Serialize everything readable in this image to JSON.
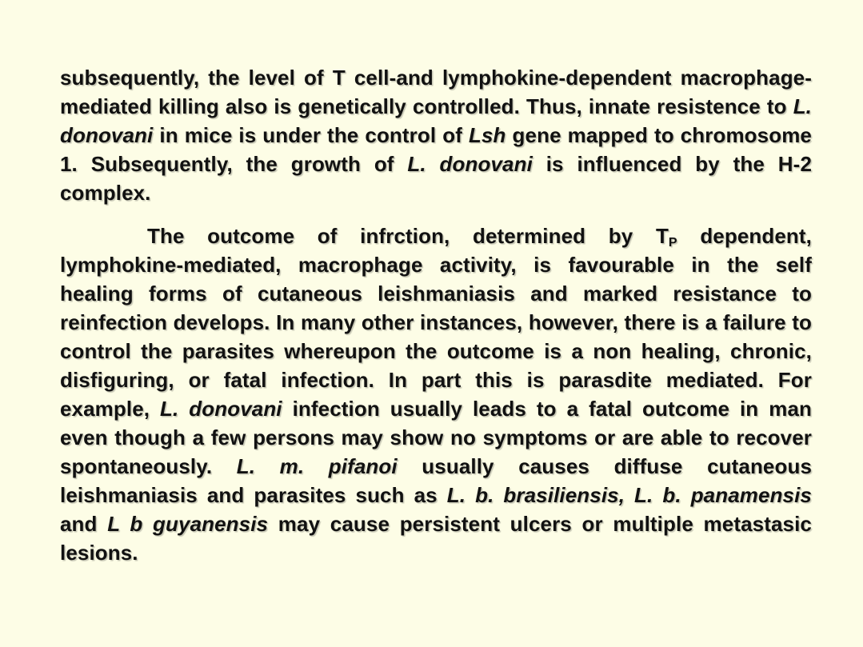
{
  "page": {
    "background_color": "#fdfde6",
    "text_color": "#111111"
  },
  "paragraphs": [
    {
      "segments": [
        {
          "text": "subsequently, the level of T cell-and lymphokine-dependent macrophage-mediated killing also is genetically controlled. Thus, innate resistence to ",
          "style": "normal"
        },
        {
          "text": "L. donovani",
          "style": "italic"
        },
        {
          "text": "  in mice is under the control of ",
          "style": "normal"
        },
        {
          "text": "Lsh",
          "style": "italic"
        },
        {
          "text": " gene mapped to chromosome 1. Subsequently, the growth of ",
          "style": "normal"
        },
        {
          "text": "L. donovani",
          "style": "italic"
        },
        {
          "text": " is influenced by the H-2 complex.",
          "style": "normal"
        }
      ]
    },
    {
      "segments": [
        {
          "text": "The outcome of infrction, determined by T",
          "style": "normal"
        },
        {
          "text": "P",
          "style": "sub"
        },
        {
          "text": " dependent, lymphokine-mediated, macrophage activity, is favourable in the self healing forms of cutaneous leishmaniasis and marked resistance to reinfection develops. In many other instances, however, there is a failure to control the parasites whereupon the outcome is a non healing, chronic, disfiguring, or fatal infection. In part this is parasdite mediated. For example, ",
          "style": "normal"
        },
        {
          "text": "L. donovani",
          "style": "italic"
        },
        {
          "text": " infection usually leads to a fatal outcome in man even though a few persons may show no symptoms or are able to recover spontaneously. ",
          "style": "normal"
        },
        {
          "text": "L. m. pifanoi",
          "style": "italic"
        },
        {
          "text": " usually causes diffuse cutaneous leishmaniasis and parasites such as ",
          "style": "normal"
        },
        {
          "text": "L. b. brasiliensis, L. b. panamensis",
          "style": "italic"
        },
        {
          "text": " and  ",
          "style": "normal"
        },
        {
          "text": "L b guyanensis",
          "style": "italic"
        },
        {
          "text": " may cause persistent ulcers or multiple metastasic lesions.",
          "style": "normal"
        }
      ]
    }
  ]
}
